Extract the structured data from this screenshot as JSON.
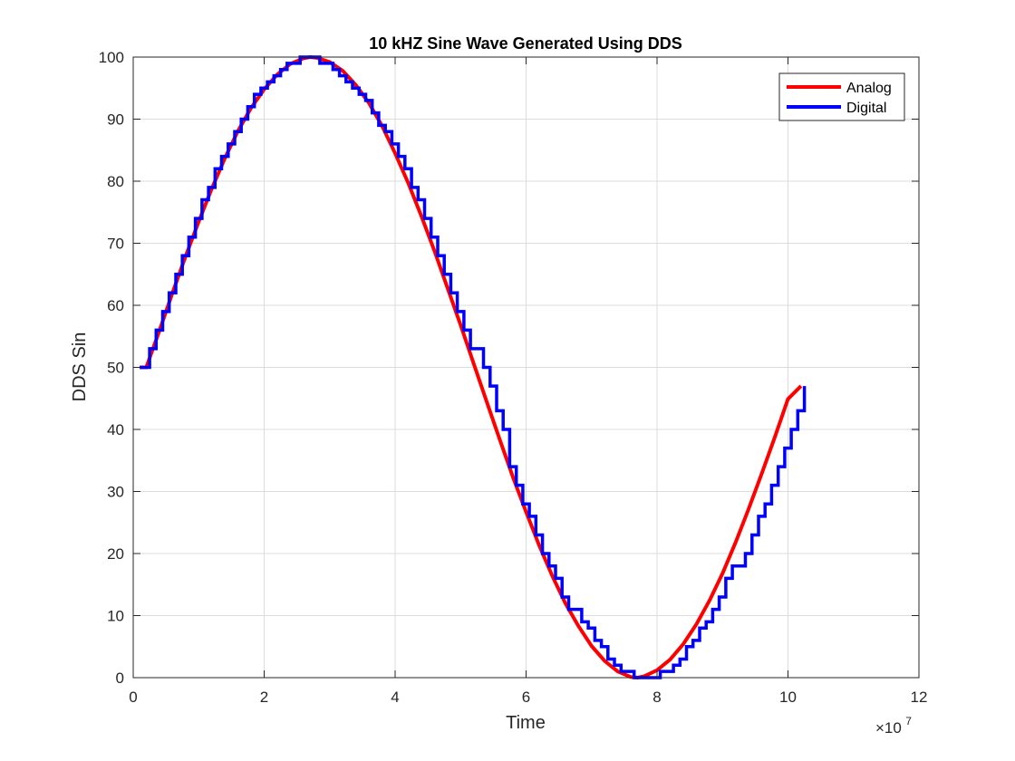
{
  "chart_data": {
    "type": "line",
    "title": "10 kHZ Sine Wave Generated Using DDS",
    "xlabel": "Time",
    "ylabel": "DDS Sin",
    "xlim": [
      0,
      12
    ],
    "ylim": [
      0,
      100
    ],
    "x_scale_exponent": {
      "base": "×10",
      "power": "7"
    },
    "x_ticks": [
      "0",
      "2",
      "4",
      "6",
      "8",
      "10",
      "12"
    ],
    "y_ticks": [
      "0",
      "10",
      "20",
      "30",
      "40",
      "50",
      "60",
      "70",
      "80",
      "90",
      "100"
    ],
    "grid": true,
    "legend_position": "top-right",
    "legend": [
      {
        "name": "Analog",
        "color": "#ff0000"
      },
      {
        "name": "Digital",
        "color": "#0000ff"
      }
    ],
    "series": [
      {
        "name": "Analog",
        "style": "line",
        "color": "#ff0000",
        "x": [
          0.1,
          0.2,
          0.4,
          0.6,
          0.8,
          1.0,
          1.2,
          1.4,
          1.6,
          1.8,
          2.0,
          2.2,
          2.4,
          2.6,
          2.7,
          2.8,
          3.0,
          3.2,
          3.4,
          3.6,
          3.8,
          4.0,
          4.2,
          4.4,
          4.6,
          4.8,
          5.0,
          5.2,
          5.4,
          5.6,
          5.8,
          6.0,
          6.2,
          6.4,
          6.6,
          6.8,
          7.0,
          7.2,
          7.4,
          7.6,
          7.7,
          7.8,
          8.0,
          8.2,
          8.4,
          8.6,
          8.8,
          9.0,
          9.2,
          9.4,
          9.6,
          9.8,
          10.0,
          10.2
        ],
        "y": [
          50.0,
          50.0,
          55.9,
          62.0,
          67.9,
          73.5,
          78.8,
          83.7,
          88.1,
          91.8,
          94.8,
          97.2,
          98.9,
          99.8,
          100.0,
          99.9,
          99.2,
          97.8,
          95.5,
          92.6,
          88.9,
          84.5,
          79.7,
          74.4,
          68.8,
          62.8,
          56.8,
          50.6,
          44.4,
          38.3,
          32.3,
          26.7,
          21.3,
          16.4,
          12.0,
          8.3,
          5.1,
          2.7,
          1.0,
          0.1,
          0.0,
          0.2,
          1.2,
          2.9,
          5.4,
          8.6,
          12.4,
          16.8,
          21.8,
          27.2,
          32.9,
          38.8,
          44.9,
          47.0
        ]
      },
      {
        "name": "Digital",
        "style": "step",
        "color": "#0000ff",
        "x": [
          0.1,
          0.25,
          0.35,
          0.45,
          0.55,
          0.65,
          0.75,
          0.85,
          0.95,
          1.05,
          1.15,
          1.25,
          1.35,
          1.45,
          1.55,
          1.65,
          1.75,
          1.85,
          1.95,
          2.05,
          2.15,
          2.25,
          2.35,
          2.45,
          2.55,
          2.65,
          2.75,
          2.85,
          2.95,
          3.05,
          3.15,
          3.25,
          3.35,
          3.45,
          3.55,
          3.65,
          3.75,
          3.85,
          3.95,
          4.05,
          4.15,
          4.25,
          4.35,
          4.45,
          4.55,
          4.65,
          4.75,
          4.85,
          4.95,
          5.05,
          5.15,
          5.25,
          5.35,
          5.45,
          5.55,
          5.65,
          5.75,
          5.85,
          5.95,
          6.05,
          6.15,
          6.25,
          6.35,
          6.45,
          6.55,
          6.65,
          6.75,
          6.85,
          6.95,
          7.05,
          7.15,
          7.25,
          7.35,
          7.45,
          7.55,
          7.65,
          7.75,
          7.85,
          7.95,
          8.05,
          8.15,
          8.25,
          8.35,
          8.45,
          8.55,
          8.65,
          8.75,
          8.85,
          8.95,
          9.05,
          9.15,
          9.25,
          9.35,
          9.45,
          9.55,
          9.65,
          9.75,
          9.85,
          9.95,
          10.05,
          10.15,
          10.25
        ],
        "y": [
          50,
          53,
          56,
          59,
          62,
          65,
          68,
          71,
          74,
          77,
          79,
          82,
          84,
          86,
          88,
          90,
          92,
          94,
          95,
          96,
          97,
          98,
          99,
          99,
          100,
          100,
          100,
          99,
          99,
          98,
          97,
          96,
          95,
          94,
          93,
          91,
          89,
          88,
          86,
          84,
          82,
          79,
          77,
          74,
          71,
          68,
          65,
          62,
          59,
          56,
          53,
          53,
          50,
          47,
          43,
          40,
          34,
          31,
          28,
          26,
          23,
          20,
          18,
          16,
          13,
          11,
          11,
          9,
          8,
          6,
          5,
          3,
          2,
          1,
          1,
          0,
          0,
          0,
          0,
          1,
          1,
          2,
          3,
          5,
          6,
          8,
          9,
          11,
          13,
          16,
          18,
          18,
          20,
          23,
          26,
          28,
          31,
          34,
          37,
          40,
          43,
          47
        ]
      }
    ]
  }
}
